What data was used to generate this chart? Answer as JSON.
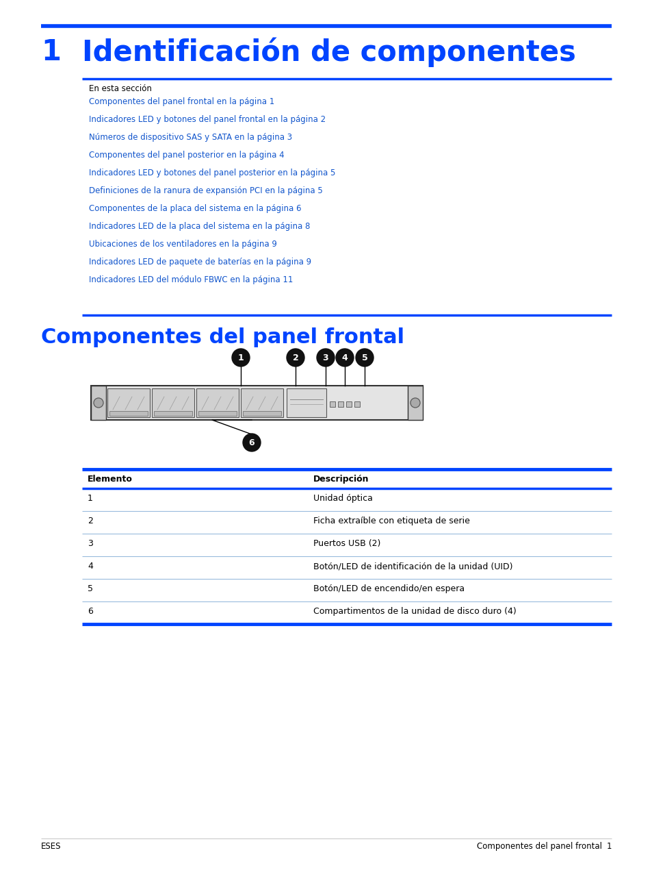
{
  "title_number": "1",
  "title_text": "Identificación de componentes",
  "blue_color": "#0044FF",
  "link_color": "#1155CC",
  "black": "#000000",
  "bg_color": "#FFFFFF",
  "section_label": "En esta sección",
  "links": [
    "Componentes del panel frontal en la página 1",
    "Indicadores LED y botones del panel frontal en la página 2",
    "Números de dispositivo SAS y SATA en la página 3",
    "Componentes del panel posterior en la página 4",
    "Indicadores LED y botones del panel posterior en la página 5",
    "Definiciones de la ranura de expansión PCI en la página 5",
    "Componentes de la placa del sistema en la página 6",
    "Indicadores LED de la placa del sistema en la página 8",
    "Ubicaciones de los ventiladores en la página 9",
    "Indicadores LED de paquete de baterías en la página 9",
    "Indicadores LED del módulo FBWC en la página 11"
  ],
  "section2_title": "Componentes del panel frontal",
  "table_headers": [
    "Elemento",
    "Descripción"
  ],
  "table_rows": [
    [
      "1",
      "Unidad óptica"
    ],
    [
      "2",
      "Ficha extraíble con etiqueta de serie"
    ],
    [
      "3",
      "Puertos USB (2)"
    ],
    [
      "4",
      "Botón/LED de identificación de la unidad (UID)"
    ],
    [
      "5",
      "Botón/LED de encendido/en espera"
    ],
    [
      "6",
      "Compartimentos de la unidad de disco duro (4)"
    ]
  ],
  "footer_left": "ESES",
  "footer_right": "Componentes del panel frontal",
  "footer_page": "1"
}
